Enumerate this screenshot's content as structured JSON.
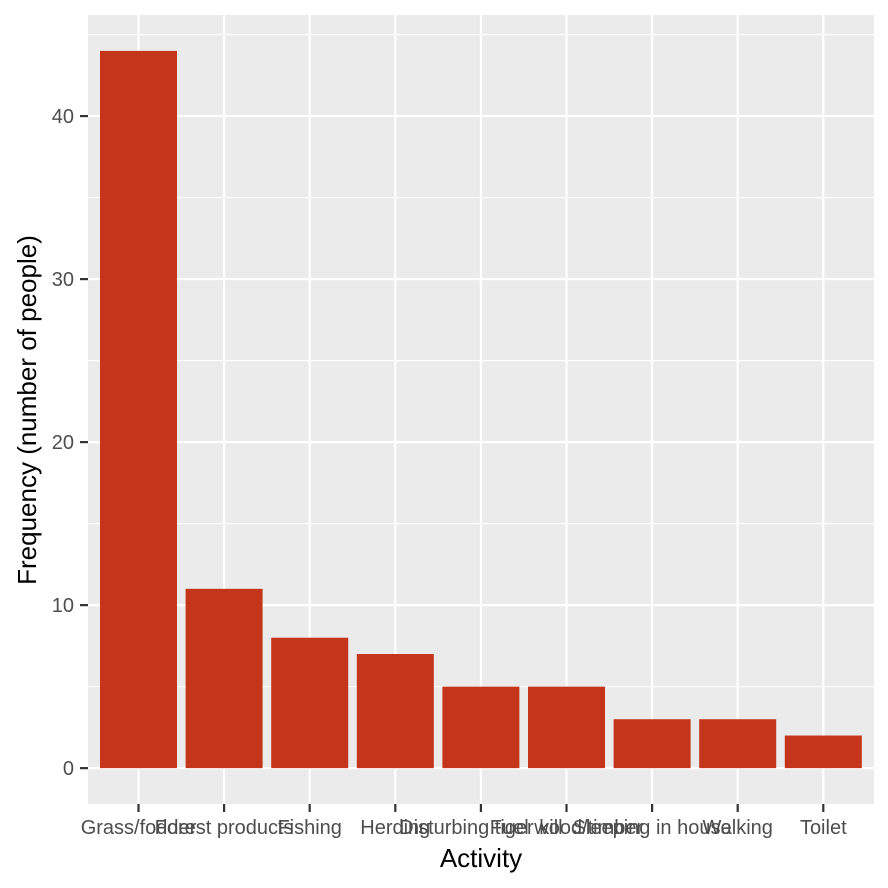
{
  "chart_data": {
    "type": "bar",
    "categories": [
      "Grass/fodder",
      "Forest products",
      "Fishing",
      "Herding",
      "Disturbing tiger kill",
      "Fuel wood/timber",
      "Sleeping in house",
      "Walking",
      "Toilet"
    ],
    "values": [
      44,
      11,
      8,
      7,
      5,
      5,
      3,
      3,
      2
    ],
    "xlabel": "Activity",
    "ylabel": "Frequency (number of people)",
    "ylim": [
      -2.2,
      46.2
    ],
    "yticks": [
      0,
      10,
      20,
      30,
      40
    ],
    "grid": true,
    "colors": {
      "bar": "#c4351c",
      "panel_background": "#ebebeb",
      "grid_line": "#ffffff",
      "tick_mark": "#333333",
      "tick_text": "#4d4d4d"
    }
  }
}
